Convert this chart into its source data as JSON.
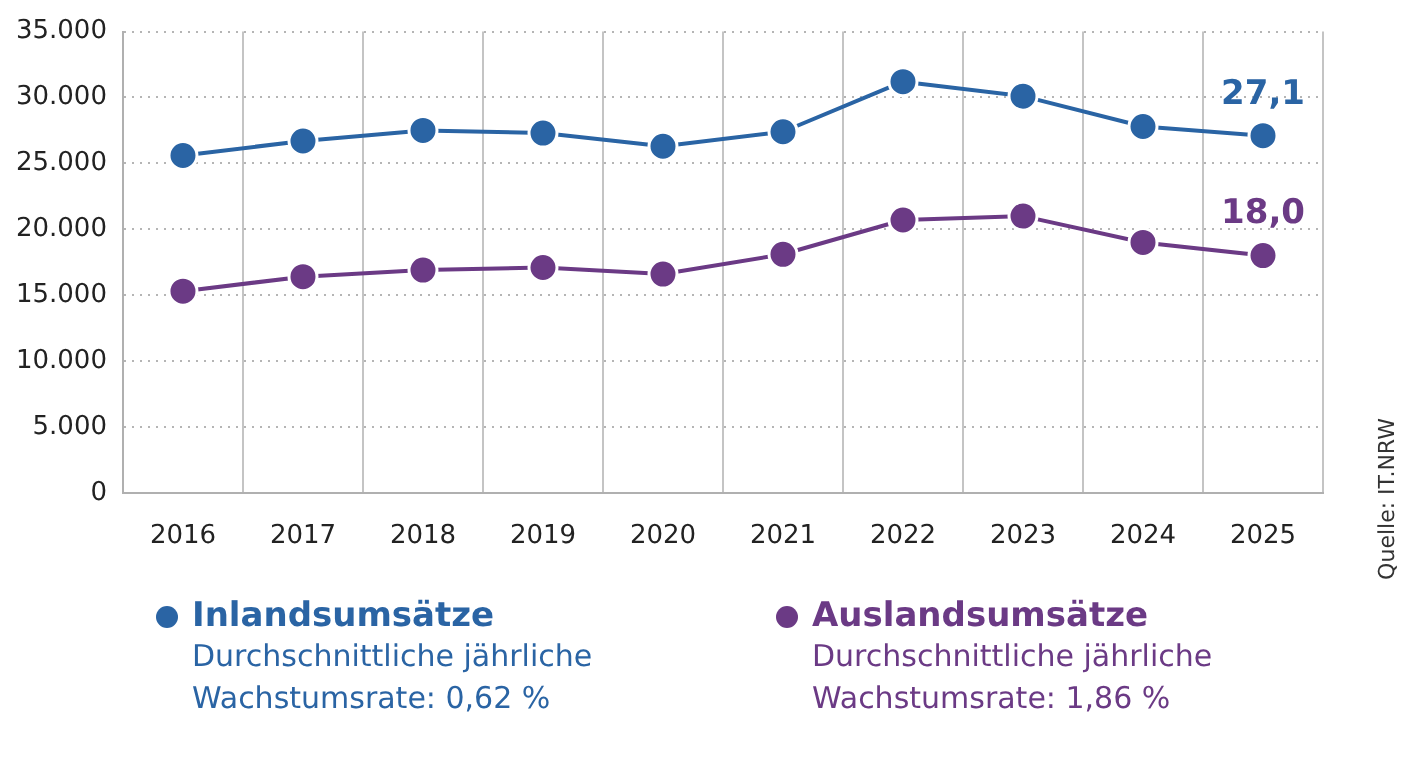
{
  "chart_data": {
    "type": "line",
    "categories": [
      "2016",
      "2017",
      "2018",
      "2019",
      "2020",
      "2021",
      "2022",
      "2023",
      "2024",
      "2025"
    ],
    "series": [
      {
        "name": "Inlandsumsätze",
        "color": "#2a64a4",
        "values": [
          25600,
          26700,
          27500,
          27300,
          26300,
          27400,
          31200,
          30100,
          27800,
          27100
        ]
      },
      {
        "name": "Auslandsumsätze",
        "color": "#6b3a85",
        "values": [
          15300,
          16400,
          16900,
          17100,
          16600,
          18100,
          20700,
          21000,
          19000,
          18000
        ]
      }
    ],
    "ylim": [
      0,
      35000
    ],
    "yticks": [
      {
        "value": 0,
        "label": "0"
      },
      {
        "value": 5000,
        "label": "5.000"
      },
      {
        "value": 10000,
        "label": "10.000"
      },
      {
        "value": 15000,
        "label": "15.000"
      },
      {
        "value": 20000,
        "label": "20.000"
      },
      {
        "value": 25000,
        "label": "25.000"
      },
      {
        "value": 30000,
        "label": "30.000"
      },
      {
        "value": 35000,
        "label": "35.000"
      }
    ],
    "grid": true,
    "legend": "bottom",
    "marker": "circle",
    "line_style": "solid",
    "annotations": [
      "Durchschnittliche jährliche Wachstumsrate: 0,62 %",
      "Durchschnittliche jährliche Wachstumsrate: 1,86 %",
      "Quelle: IT.NRW",
      {
        "text": "27,1",
        "x": "2025",
        "y": 27100
      },
      {
        "text": "18,0",
        "x": "2025",
        "y": 18000
      }
    ]
  }
}
